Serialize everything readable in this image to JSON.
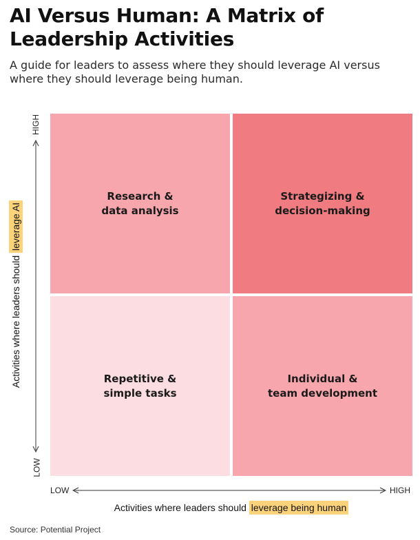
{
  "title_lines": [
    "AI Versus Human: A Matrix of",
    "Leadership Activities"
  ],
  "subtitle_lines": [
    "A guide for leaders to assess where they should leverage AI versus",
    "where they should leverage being human."
  ],
  "quadrants": {
    "top_left": [
      "Research &",
      "data analysis"
    ],
    "top_right": [
      "Strategizing &",
      "decision-making"
    ],
    "bottom_left": [
      "Repetitive &",
      "simple tasks"
    ],
    "bottom_right": [
      "Individual &",
      "team development"
    ]
  },
  "colors": {
    "top_left": "#f8a6ad",
    "top_right": "#f07b80",
    "bottom_left": "#fcdde1",
    "bottom_right": "#f8a6ad",
    "highlight": "#fcd27a"
  },
  "y_axis": {
    "label_prefix": "Activities where leaders should ",
    "label_highlight": "leverage AI",
    "high": "HIGH",
    "low": "LOW"
  },
  "x_axis": {
    "label_prefix": "Activities where leaders should ",
    "label_highlight": "leverage being human",
    "low": "LOW",
    "high": "HIGH"
  },
  "source": "Source: Potential Project"
}
